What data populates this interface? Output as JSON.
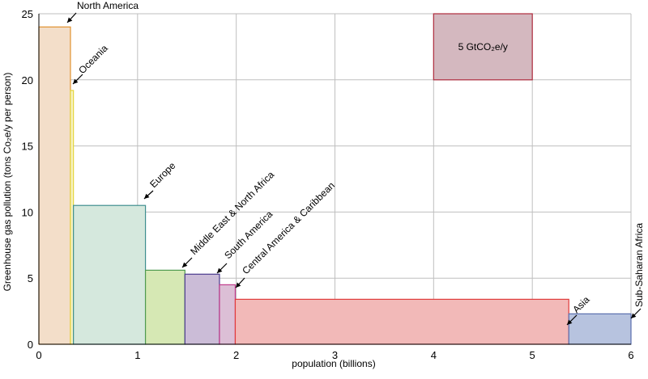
{
  "chart_data": {
    "type": "bar",
    "subtype": "variable-width",
    "xlabel": "population (billions)",
    "ylabel": "Greenhouse gas pollution (tons Co₂e/y per person)",
    "xlim": [
      0,
      6
    ],
    "ylim": [
      0,
      25
    ],
    "xticks": [
      "0",
      "1",
      "2",
      "3",
      "4",
      "5",
      "6"
    ],
    "yticks": [
      "0",
      "5",
      "10",
      "15",
      "20",
      "25"
    ],
    "grid": true,
    "regions": [
      {
        "name": "North America",
        "x0": 0.0,
        "x1": 0.32,
        "value": 24.0,
        "fill": "#f3dec9",
        "stroke": "#e0922f"
      },
      {
        "name": "Oceania",
        "x0": 0.32,
        "x1": 0.35,
        "value": 19.2,
        "fill": "#f6f2c4",
        "stroke": "#e4d53a"
      },
      {
        "name": "Europe",
        "x0": 0.35,
        "x1": 1.08,
        "value": 10.5,
        "fill": "#d5e8dd",
        "stroke": "#3f8f8f"
      },
      {
        "name": "Middle East & North Africa",
        "x0": 1.08,
        "x1": 1.48,
        "value": 5.6,
        "fill": "#d6e8b4",
        "stroke": "#4f9a4f"
      },
      {
        "name": "South America",
        "x0": 1.48,
        "x1": 1.83,
        "value": 5.3,
        "fill": "#cbbcd7",
        "stroke": "#4b3a8e"
      },
      {
        "name": "Central America & Caribbean",
        "x0": 1.83,
        "x1": 1.99,
        "value": 4.5,
        "fill": "#dcbfd6",
        "stroke": "#c03a8a"
      },
      {
        "name": "Asia",
        "x0": 1.99,
        "x1": 5.37,
        "value": 3.4,
        "fill": "#f2b9b8",
        "stroke": "#e03c3c"
      },
      {
        "name": "Sub-Saharan Africa",
        "x0": 5.37,
        "x1": 6.0,
        "value": 2.3,
        "fill": "#b7c3df",
        "stroke": "#5a6fae"
      }
    ],
    "scale_key": {
      "label": "5 GtCO₂e/y",
      "x0": 4.0,
      "x1": 5.0,
      "y0": 20.0,
      "y1": 25.0,
      "fill": "#d4b8bf",
      "stroke": "#b02c3e"
    }
  }
}
